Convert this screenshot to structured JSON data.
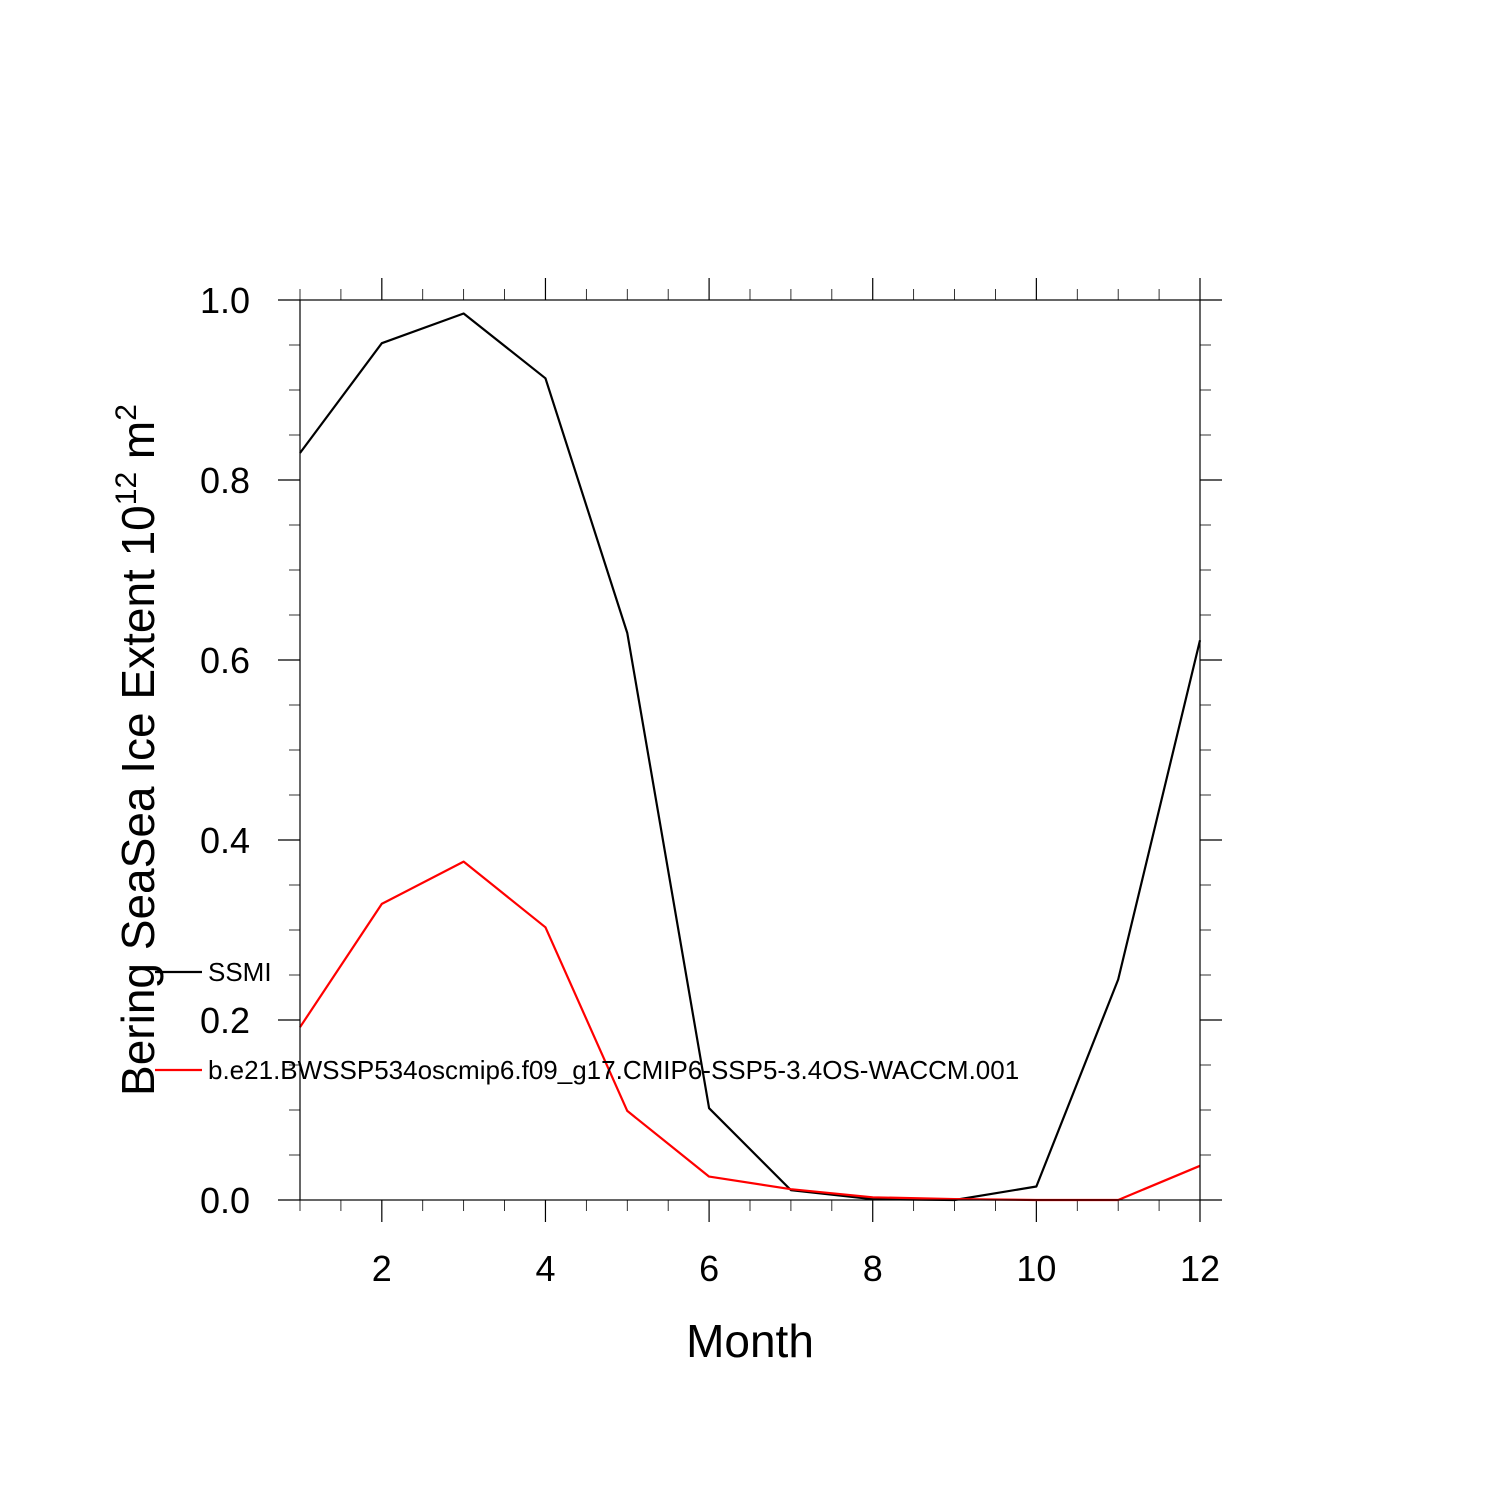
{
  "chart_data": {
    "type": "line",
    "title": "",
    "xlabel": "Month",
    "ylabel": "Bering SeaSea Ice Extent 10",
    "ylabel_superscript": "12",
    "ylabel_unit": " m",
    "ylabel_unit_superscript": "2",
    "xlim": [
      1,
      12
    ],
    "ylim": [
      0.0,
      1.0
    ],
    "x": [
      1,
      2,
      3,
      4,
      5,
      6,
      7,
      8,
      9,
      10,
      11,
      12
    ],
    "x_ticks": [
      2,
      4,
      6,
      8,
      10,
      12
    ],
    "x_tick_labels": [
      "2",
      "4",
      "6",
      "8",
      "10",
      "12"
    ],
    "y_ticks": [
      0.0,
      0.2,
      0.4,
      0.6,
      0.8,
      1.0
    ],
    "y_tick_labels": [
      "0.0",
      "0.2",
      "0.4",
      "0.6",
      "0.8",
      "1.0"
    ],
    "grid": false,
    "legend_position": "left-center",
    "series": [
      {
        "name": "SSMI",
        "color": "#000000",
        "values": [
          0.83,
          0.952,
          0.985,
          0.913,
          0.63,
          0.102,
          0.011,
          0.001,
          0.0,
          0.015,
          0.245,
          0.622
        ]
      },
      {
        "name": "b.e21.BWSSP534oscmip6.f09_g17.CMIP6-SSP5-3.4OS-WACCM.001",
        "color": "#ff0000",
        "values": [
          0.192,
          0.329,
          0.376,
          0.303,
          0.099,
          0.026,
          0.012,
          0.003,
          0.001,
          0.0,
          0.0,
          0.038
        ]
      }
    ]
  }
}
